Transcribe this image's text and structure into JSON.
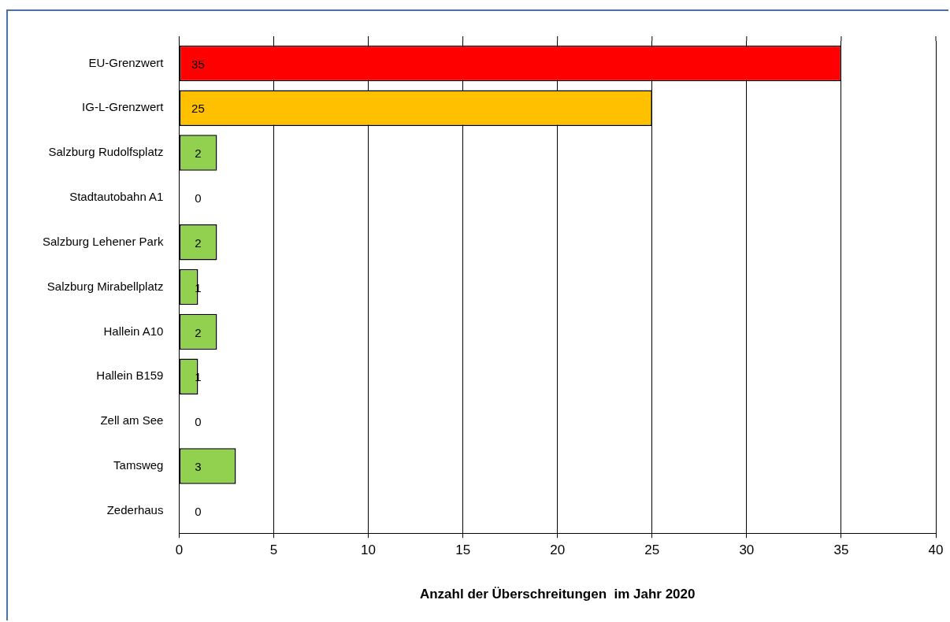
{
  "chart_data": {
    "type": "bar",
    "orientation": "horizontal",
    "xlabel": "Anzahl der Überschreitungen  im Jahr 2020",
    "categories": [
      "EU-Grenzwert",
      "IG-L-Grenzwert",
      "Salzburg Rudolfsplatz",
      "Stadtautobahn A1",
      "Salzburg Lehener Park",
      "Salzburg Mirabellplatz",
      "Hallein A10",
      "Hallein B159",
      "Zell am See",
      "Tamsweg",
      "Zederhaus"
    ],
    "values": [
      35,
      25,
      2,
      0,
      2,
      1,
      2,
      1,
      0,
      3,
      0
    ],
    "colors": [
      "#ff0000",
      "#ffc000",
      "#92d050",
      "#92d050",
      "#92d050",
      "#92d050",
      "#92d050",
      "#92d050",
      "#92d050",
      "#92d050",
      "#92d050"
    ],
    "xlim": [
      0,
      40
    ],
    "xticks": [
      0,
      5,
      10,
      15,
      20,
      25,
      30,
      35,
      40
    ],
    "grid": "x",
    "data_labels": true,
    "legend": false
  }
}
